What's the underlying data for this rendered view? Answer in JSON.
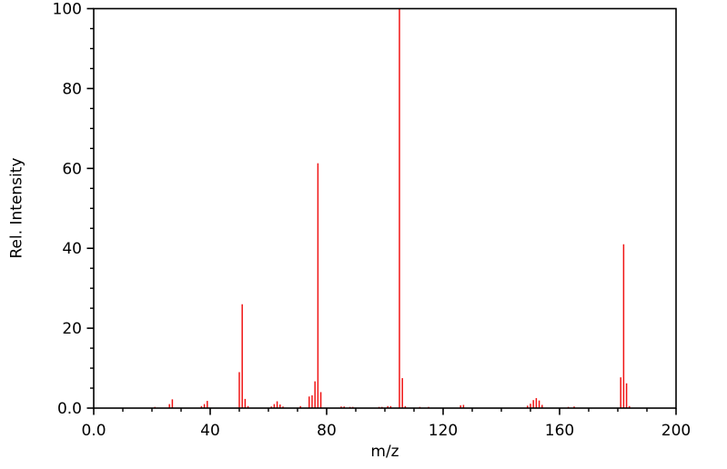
{
  "chart_data": {
    "type": "bar",
    "subtype": "mass-spectrum-stem",
    "title": "",
    "xlabel": "m/z",
    "ylabel": "Rel. Intensity",
    "xlim": [
      0,
      200
    ],
    "ylim": [
      0,
      100
    ],
    "grid": false,
    "legend": false,
    "axis_color": "#000000",
    "tick_label_color": "#000000",
    "peak_color": "#f01414",
    "x_major_ticks": [
      0,
      40,
      80,
      120,
      160,
      200
    ],
    "x_major_tick_labels": [
      "0.0",
      "40",
      "80",
      "120",
      "160",
      "200"
    ],
    "x_minor_step": 10,
    "y_major_ticks": [
      0,
      20,
      40,
      60,
      80,
      100
    ],
    "y_major_tick_labels": [
      "0.0",
      "20",
      "40",
      "60",
      "80",
      "100"
    ],
    "y_minor_step": 5,
    "peaks": [
      [
        21,
        0.3
      ],
      [
        26,
        1.0
      ],
      [
        27,
        2.2
      ],
      [
        37,
        0.5
      ],
      [
        38,
        1.0
      ],
      [
        39,
        1.8
      ],
      [
        50,
        9.0
      ],
      [
        51,
        26.0
      ],
      [
        52,
        2.3
      ],
      [
        53,
        0.5
      ],
      [
        61,
        0.4
      ],
      [
        62,
        1.0
      ],
      [
        63,
        1.7
      ],
      [
        64,
        0.9
      ],
      [
        65,
        0.4
      ],
      [
        71,
        0.5
      ],
      [
        74,
        2.9
      ],
      [
        75,
        3.2
      ],
      [
        76,
        6.7
      ],
      [
        77,
        61.3
      ],
      [
        78,
        4.0
      ],
      [
        85,
        0.4
      ],
      [
        86,
        0.4
      ],
      [
        88,
        0.3
      ],
      [
        89,
        0.3
      ],
      [
        98,
        0.3
      ],
      [
        99,
        0.3
      ],
      [
        101,
        0.5
      ],
      [
        102,
        0.5
      ],
      [
        105,
        100.0
      ],
      [
        106,
        7.5
      ],
      [
        107,
        0.5
      ],
      [
        112,
        0.3
      ],
      [
        115,
        0.3
      ],
      [
        126,
        0.7
      ],
      [
        127,
        0.8
      ],
      [
        149,
        0.6
      ],
      [
        150,
        1.1
      ],
      [
        151,
        2.0
      ],
      [
        152,
        2.5
      ],
      [
        153,
        1.9
      ],
      [
        154,
        0.8
      ],
      [
        163,
        0.3
      ],
      [
        165,
        0.4
      ],
      [
        181,
        7.7
      ],
      [
        182,
        41.0
      ],
      [
        183,
        6.2
      ],
      [
        184,
        0.5
      ]
    ]
  }
}
